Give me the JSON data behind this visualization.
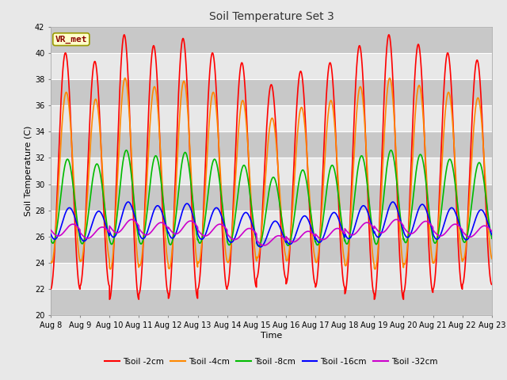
{
  "title": "Soil Temperature Set 3",
  "xlabel": "Time",
  "ylabel": "Soil Temperature (C)",
  "ylim": [
    20,
    42
  ],
  "xlim": [
    0,
    15
  ],
  "x_tick_labels": [
    "Aug 8",
    "Aug 9",
    "Aug 10",
    "Aug 11",
    "Aug 12",
    "Aug 13",
    "Aug 14",
    "Aug 15",
    "Aug 16",
    "Aug 17",
    "Aug 18",
    "Aug 19",
    "Aug 20",
    "Aug 21",
    "Aug 22",
    "Aug 23"
  ],
  "annotation": "VR_met",
  "fig_bg": "#e8e8e8",
  "plot_bg": "#dcdcdc",
  "series": [
    {
      "label": "Tsoil -2cm",
      "color": "#ff0000",
      "mean": 31.0,
      "amplitude": 9.0,
      "phase": 0.0,
      "lw": 1.2
    },
    {
      "label": "Tsoil -4cm",
      "color": "#ff8800",
      "mean": 30.5,
      "amplitude": 6.5,
      "phase": 0.18,
      "lw": 1.2
    },
    {
      "label": "Tsoil -8cm",
      "color": "#00bb00",
      "mean": 28.7,
      "amplitude": 3.2,
      "phase": 0.45,
      "lw": 1.2
    },
    {
      "label": "Tsoil -16cm",
      "color": "#0000ff",
      "mean": 27.0,
      "amplitude": 1.2,
      "phase": 0.85,
      "lw": 1.2
    },
    {
      "label": "Tsoil -32cm",
      "color": "#cc00cc",
      "mean": 26.5,
      "amplitude": 0.45,
      "phase": 1.6,
      "lw": 1.2
    }
  ],
  "day_amp_factors": [
    1.0,
    0.95,
    1.12,
    1.05,
    1.1,
    1.0,
    0.95,
    0.82,
    0.9,
    0.95,
    1.05,
    1.12,
    1.05,
    1.0,
    0.95
  ],
  "day_mean_offsets": [
    0.0,
    -0.2,
    0.3,
    0.1,
    0.2,
    0.0,
    -0.3,
    -0.8,
    -0.5,
    -0.3,
    0.1,
    0.3,
    0.2,
    0.0,
    -0.1
  ]
}
